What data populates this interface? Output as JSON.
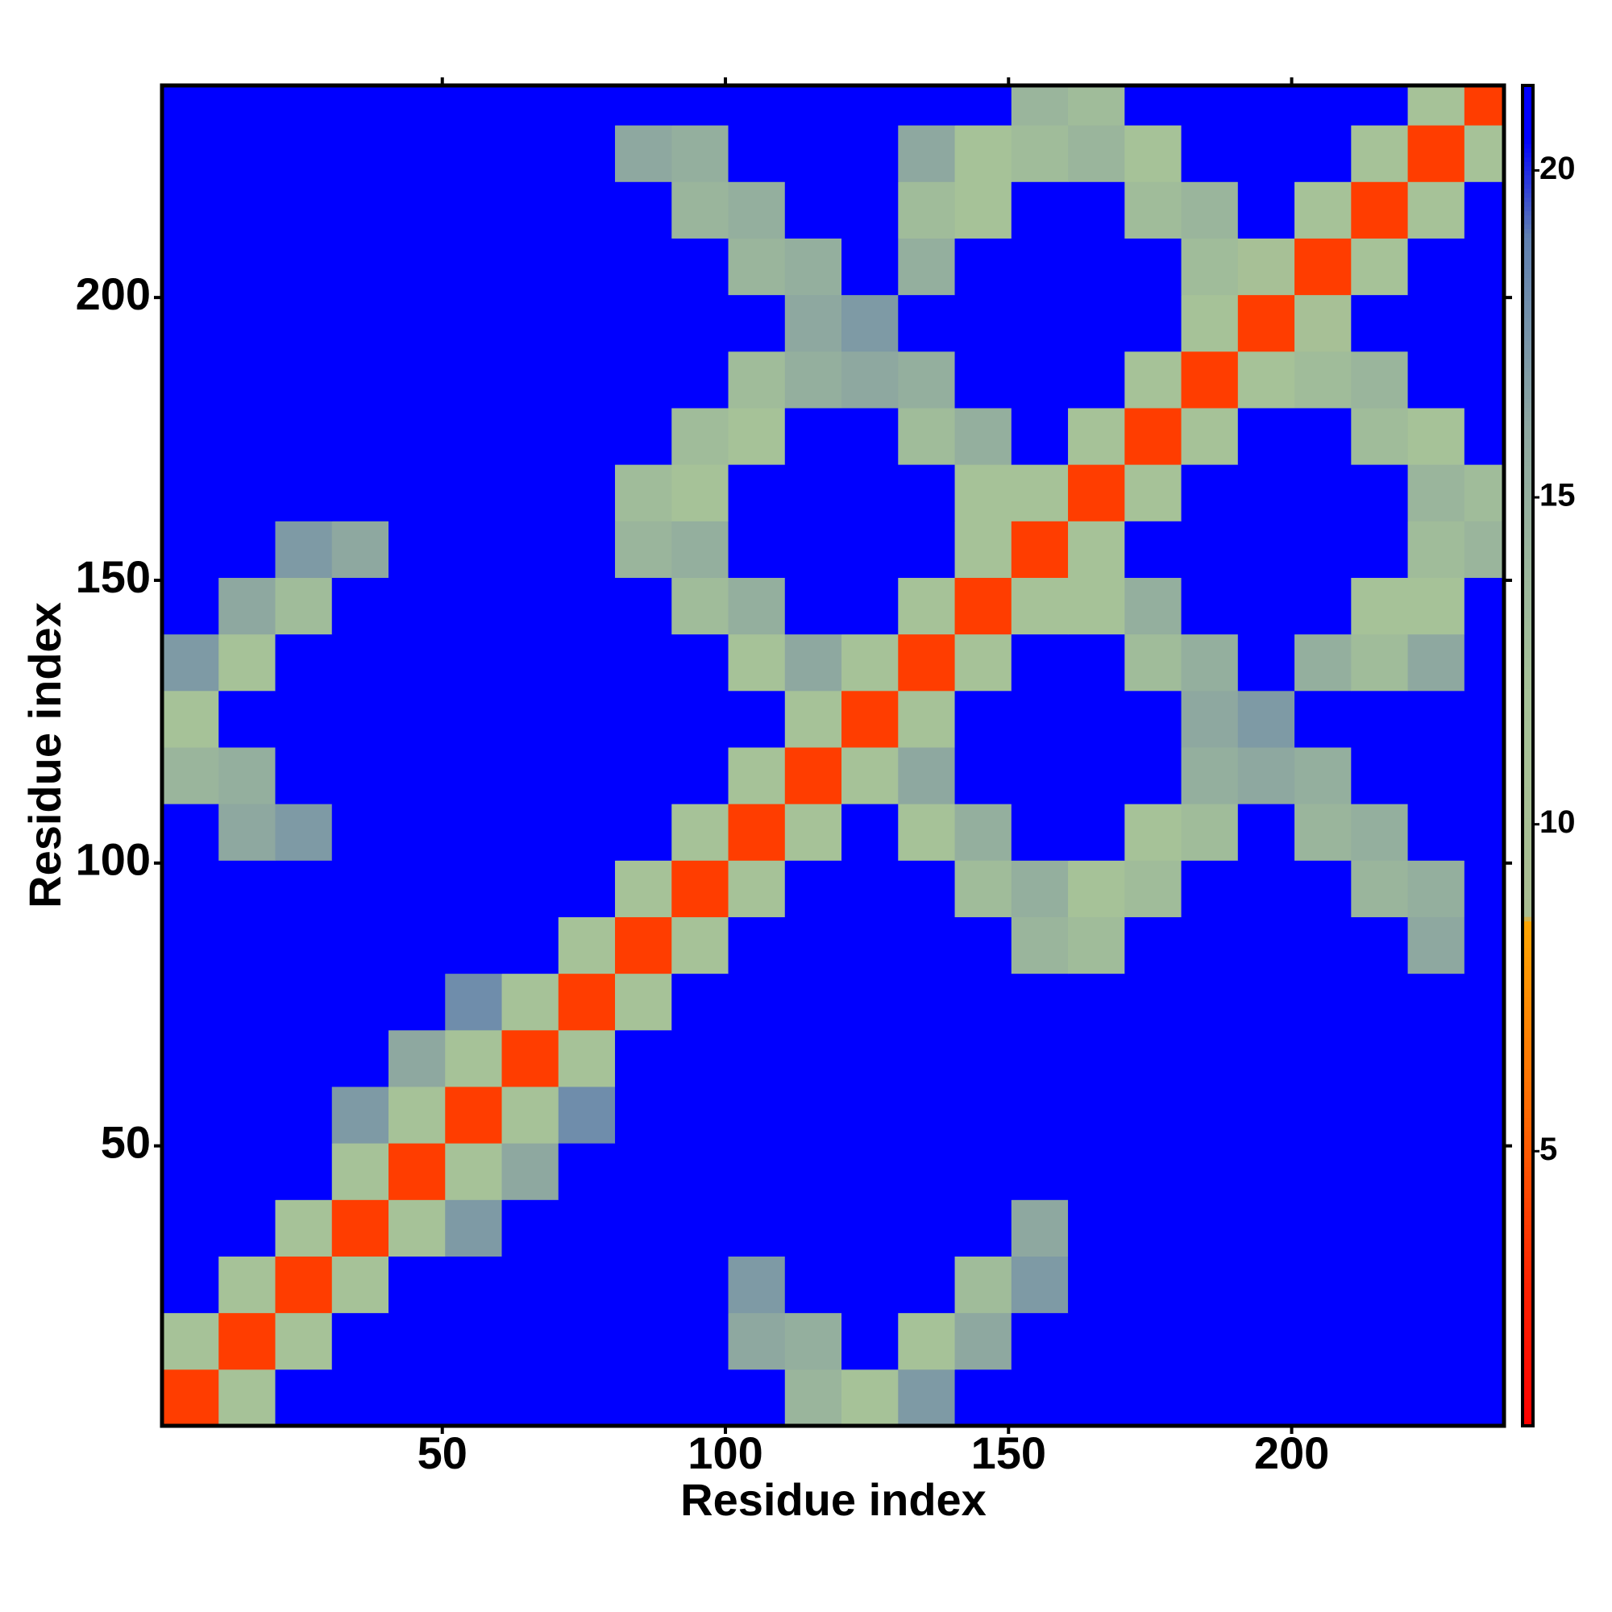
{
  "chart_data": {
    "type": "heatmap",
    "xlabel": "Residue index",
    "ylabel": "Residue index",
    "bins": [
      0.5,
      10.5,
      20.5,
      30.5,
      40.5,
      50.5,
      60.5,
      70.5,
      80.5,
      90.5,
      100.5,
      110.5,
      120.5,
      130.5,
      140.5,
      150.5,
      160.5,
      170.5,
      180.5,
      190.5,
      200.5,
      210.5,
      220.5,
      230.5,
      237.5
    ],
    "xlim": [
      0.5,
      237.5
    ],
    "ylim": [
      0.5,
      237.5
    ],
    "xticks": [
      50,
      100,
      150,
      200
    ],
    "yticks": [
      50,
      100,
      150,
      200
    ],
    "zlim": [
      0.8,
      21.3
    ],
    "zticks": [
      5,
      10,
      15,
      20
    ],
    "colorscale": [
      [
        0.8,
        "#ff0000"
      ],
      [
        3,
        "#ff2200"
      ],
      [
        5.5,
        "#ff6600"
      ],
      [
        8.5,
        "#ffa500"
      ],
      [
        8.6,
        "#a8bc90"
      ],
      [
        12,
        "#a6c298"
      ],
      [
        16,
        "#8ea8a0"
      ],
      [
        19,
        "#5f7fb0"
      ],
      [
        20.5,
        "#0000ff"
      ],
      [
        21.3,
        "#0000ff"
      ]
    ],
    "z": [
      [
        4,
        12,
        21,
        21,
        21,
        21,
        21,
        21,
        21,
        21,
        21,
        14,
        12,
        17,
        21,
        21,
        21,
        21,
        21,
        21,
        21,
        21,
        21,
        21
      ],
      [
        12,
        4,
        12,
        21,
        21,
        21,
        21,
        21,
        21,
        21,
        16,
        15,
        21,
        12,
        16,
        21,
        21,
        21,
        21,
        21,
        21,
        21,
        21,
        21
      ],
      [
        21,
        12,
        4,
        12,
        21,
        21,
        21,
        21,
        21,
        21,
        17,
        21,
        21,
        21,
        13,
        17,
        21,
        21,
        21,
        21,
        21,
        21,
        21,
        21
      ],
      [
        21,
        21,
        12,
        4,
        12,
        17,
        21,
        21,
        21,
        21,
        21,
        21,
        21,
        21,
        21,
        16,
        21,
        21,
        21,
        21,
        21,
        21,
        21,
        21
      ],
      [
        21,
        21,
        21,
        12,
        4,
        12,
        16,
        21,
        21,
        21,
        21,
        21,
        21,
        21,
        21,
        21,
        21,
        21,
        21,
        21,
        21,
        21,
        21,
        21
      ],
      [
        21,
        21,
        21,
        17,
        12,
        4,
        12,
        18,
        21,
        21,
        21,
        21,
        21,
        21,
        21,
        21,
        21,
        21,
        21,
        21,
        21,
        21,
        21,
        21
      ],
      [
        21,
        21,
        21,
        21,
        16,
        12,
        4,
        12,
        21,
        21,
        21,
        21,
        21,
        21,
        21,
        21,
        21,
        21,
        21,
        21,
        21,
        21,
        21,
        21
      ],
      [
        21,
        21,
        21,
        21,
        21,
        18,
        12,
        4,
        12,
        21,
        21,
        21,
        21,
        21,
        21,
        21,
        21,
        21,
        21,
        21,
        21,
        21,
        21,
        21
      ],
      [
        21,
        21,
        21,
        21,
        21,
        21,
        21,
        12,
        4,
        12,
        21,
        21,
        21,
        21,
        21,
        14,
        13,
        21,
        21,
        21,
        21,
        21,
        16,
        21
      ],
      [
        21,
        21,
        21,
        21,
        21,
        21,
        21,
        21,
        12,
        4,
        12,
        21,
        21,
        21,
        13,
        15,
        12,
        13,
        21,
        21,
        21,
        14,
        15,
        21
      ],
      [
        21,
        16,
        17,
        21,
        21,
        21,
        21,
        21,
        21,
        12,
        4,
        12,
        21,
        12,
        15,
        21,
        21,
        12,
        13,
        21,
        14,
        15,
        21,
        21
      ],
      [
        14,
        15,
        21,
        21,
        21,
        21,
        21,
        21,
        21,
        21,
        12,
        4,
        12,
        16,
        21,
        21,
        21,
        21,
        15,
        16,
        15,
        21,
        21,
        21
      ],
      [
        12,
        21,
        21,
        21,
        21,
        21,
        21,
        21,
        21,
        21,
        21,
        12,
        4,
        12,
        21,
        21,
        21,
        21,
        16,
        17,
        21,
        21,
        21,
        21
      ],
      [
        17,
        12,
        21,
        21,
        21,
        21,
        21,
        21,
        21,
        21,
        12,
        16,
        12,
        4,
        12,
        21,
        21,
        13,
        15,
        21,
        15,
        13,
        16,
        21
      ],
      [
        21,
        16,
        13,
        21,
        21,
        21,
        21,
        21,
        21,
        13,
        15,
        21,
        21,
        12,
        4,
        12,
        12,
        15,
        21,
        21,
        21,
        12,
        12,
        21
      ],
      [
        21,
        21,
        17,
        16,
        21,
        21,
        21,
        21,
        14,
        15,
        21,
        21,
        21,
        21,
        12,
        4,
        12,
        21,
        21,
        21,
        21,
        21,
        13,
        14
      ],
      [
        21,
        21,
        21,
        21,
        21,
        21,
        21,
        21,
        13,
        12,
        21,
        21,
        21,
        21,
        12,
        12,
        4,
        12,
        21,
        21,
        21,
        21,
        14,
        13
      ],
      [
        21,
        21,
        21,
        21,
        21,
        21,
        21,
        21,
        21,
        13,
        12,
        21,
        21,
        13,
        15,
        21,
        12,
        4,
        12,
        21,
        21,
        13,
        12,
        21
      ],
      [
        21,
        21,
        21,
        21,
        21,
        21,
        21,
        21,
        21,
        21,
        13,
        15,
        16,
        15,
        21,
        21,
        21,
        12,
        4,
        12,
        13,
        14,
        21,
        21
      ],
      [
        21,
        21,
        21,
        21,
        21,
        21,
        21,
        21,
        21,
        21,
        21,
        16,
        17,
        21,
        21,
        21,
        21,
        21,
        12,
        4,
        11,
        21,
        21,
        21
      ],
      [
        21,
        21,
        21,
        21,
        21,
        21,
        21,
        21,
        21,
        21,
        14,
        15,
        21,
        15,
        21,
        21,
        21,
        21,
        13,
        11,
        4,
        12,
        21,
        21
      ],
      [
        21,
        21,
        21,
        21,
        21,
        21,
        21,
        21,
        21,
        14,
        15,
        21,
        21,
        13,
        12,
        21,
        21,
        13,
        14,
        21,
        12,
        4,
        12,
        21
      ],
      [
        21,
        21,
        21,
        21,
        21,
        21,
        21,
        21,
        16,
        15,
        21,
        21,
        21,
        16,
        12,
        13,
        14,
        12,
        21,
        21,
        21,
        12,
        4,
        12
      ],
      [
        21,
        21,
        21,
        21,
        21,
        21,
        21,
        21,
        21,
        21,
        21,
        21,
        21,
        21,
        21,
        14,
        13,
        21,
        21,
        21,
        21,
        21,
        12,
        4
      ]
    ]
  }
}
